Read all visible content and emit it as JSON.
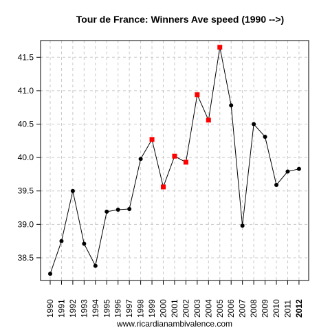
{
  "chart_data": {
    "type": "line",
    "title": "Tour de France: Winners Ave speed (1990 -->)",
    "xlabel": "",
    "ylabel": "",
    "caption": "www.ricardianambivalence.com",
    "x": [
      "1990",
      "1991",
      "1992",
      "1993",
      "1994",
      "1995",
      "1996",
      "1997",
      "1998",
      "1999",
      "2000",
      "2001",
      "2002",
      "2003",
      "2004",
      "2005",
      "2006",
      "2007",
      "2008",
      "2009",
      "2010",
      "2011",
      "2012"
    ],
    "bold_tick": "2012",
    "y": [
      38.26,
      38.75,
      39.5,
      38.71,
      38.38,
      39.19,
      39.22,
      39.23,
      39.98,
      40.27,
      39.56,
      40.02,
      39.93,
      40.94,
      40.56,
      41.65,
      40.78,
      38.98,
      40.5,
      40.31,
      39.59,
      39.79,
      39.83
    ],
    "highlighted": [
      false,
      false,
      false,
      false,
      false,
      false,
      false,
      false,
      false,
      true,
      true,
      true,
      true,
      true,
      true,
      true,
      false,
      false,
      false,
      false,
      false,
      false,
      false
    ],
    "yticks": [
      38.5,
      39.0,
      39.5,
      40.0,
      40.5,
      41.0,
      41.5
    ],
    "ytick_labels": [
      "38.5",
      "39.0",
      "39.5",
      "40.0",
      "40.5",
      "41.0",
      "41.5"
    ],
    "ylim": [
      38.16,
      41.75
    ],
    "grid": true,
    "colors": {
      "normal_marker": "#000000",
      "highlight_marker": "#ff0000",
      "line": "#000000",
      "grid": "#c8c8c8"
    }
  }
}
